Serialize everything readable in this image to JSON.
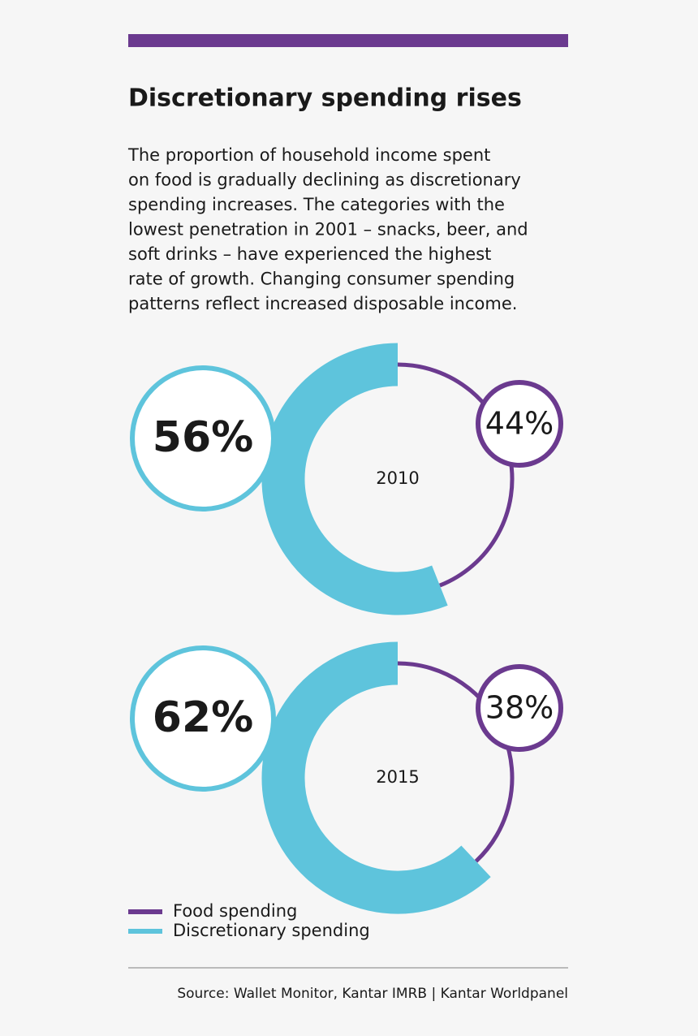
{
  "title": "Discretionary spending rises",
  "description": [
    "The proportion of household income spent",
    "on food is gradually declining as discretionary",
    "spending increases. The categories with the",
    "lowest penetration in 2001 – snacks, beer, and",
    "soft drinks – have experienced the highest",
    "rate of growth. Changing consumer spending",
    "patterns reflect increased disposable income."
  ],
  "chart_data": [
    {
      "type": "donut",
      "label": "2010",
      "categories": [
        "Food spending",
        "Discretionary spending"
      ],
      "values": [
        44,
        56
      ],
      "value_labels": [
        "44%",
        "56%"
      ],
      "colors": [
        "#6b3a8f",
        "#5ec4dc"
      ]
    },
    {
      "type": "donut",
      "label": "2015",
      "categories": [
        "Food spending",
        "Discretionary spending"
      ],
      "values": [
        38,
        62
      ],
      "value_labels": [
        "38%",
        "62%"
      ],
      "colors": [
        "#6b3a8f",
        "#5ec4dc"
      ]
    }
  ],
  "source": "Source: Wallet Monitor, Kantar IMRB | Kantar Worldpanel"
}
